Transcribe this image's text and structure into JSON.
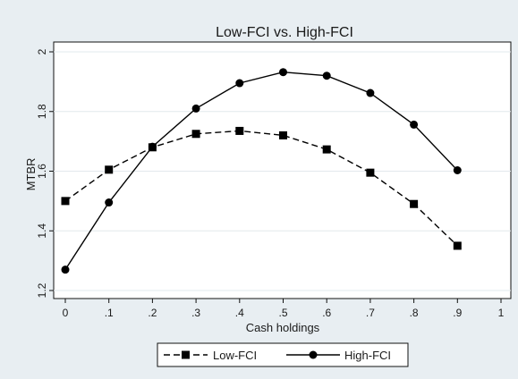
{
  "chart_data": {
    "type": "line",
    "title": "Low-FCI vs. High-FCI",
    "xlabel": "Cash holdings",
    "ylabel": "MTBR",
    "xlim": [
      0,
      1
    ],
    "ylim": [
      1.2,
      2.0
    ],
    "x_ticks": [
      "0",
      ".1",
      ".2",
      ".3",
      ".4",
      ".5",
      ".6",
      ".7",
      ".8",
      ".9",
      "1"
    ],
    "x_tick_values": [
      0,
      0.1,
      0.2,
      0.3,
      0.4,
      0.5,
      0.6,
      0.7,
      0.8,
      0.9,
      1.0
    ],
    "y_ticks": [
      "1.2",
      "1.4",
      "1.6",
      "1.8",
      "2"
    ],
    "y_tick_values": [
      1.2,
      1.4,
      1.6,
      1.8,
      2.0
    ],
    "grid": "horizontal",
    "legend_position": "bottom",
    "x": [
      0,
      0.1,
      0.2,
      0.3,
      0.4,
      0.5,
      0.6,
      0.7,
      0.8,
      0.9
    ],
    "series": [
      {
        "name": "Low-FCI",
        "marker": "square",
        "line_style": "dashed",
        "color": "#000000",
        "values": [
          1.5,
          1.605,
          1.68,
          1.725,
          1.735,
          1.72,
          1.673,
          1.595,
          1.49,
          1.35
        ]
      },
      {
        "name": "High-FCI",
        "marker": "circle",
        "line_style": "solid",
        "color": "#000000",
        "values": [
          1.27,
          1.495,
          1.682,
          1.81,
          1.895,
          1.932,
          1.92,
          1.862,
          1.756,
          1.603
        ]
      }
    ]
  }
}
